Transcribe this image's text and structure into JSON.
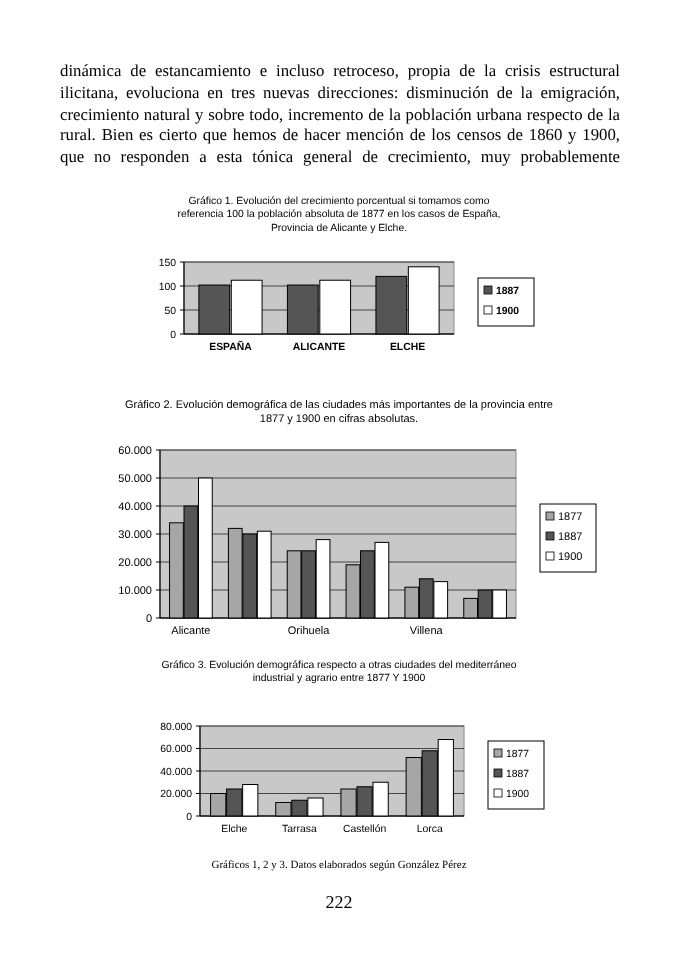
{
  "chart_data": [
    {
      "type": "bar",
      "title": "Gráfico 1. Evolución del crecimiento porcentual si tomamos como referencia 100 la población absoluta de 1877 en los casos de España, Provincia de Alicante y Elche.",
      "categories": [
        "ESPAÑA",
        "ALICANTE",
        "ELCHE"
      ],
      "series": [
        {
          "name": "1887",
          "color": "#555555",
          "values": [
            102,
            102,
            120
          ]
        },
        {
          "name": "1900",
          "color": "#ffffff",
          "values": [
            112,
            112,
            140
          ]
        }
      ],
      "ylim": [
        0,
        150
      ],
      "yticks": [
        0,
        50,
        100,
        150
      ],
      "grid": "y",
      "legend": "right",
      "annotations": [
        "dinámica de estancamiento e incluso retroceso, propia de la crisis estructural ilicitana, evoluciona en tres nuevas direcciones: disminución de la emigración, crecimiento natural y sobre todo, incremento de la población urbana respecto de la rural. Bien es cierto que hemos de hacer mención de los censos de 1860 y 1900, que no responden a esta tónica general de crecimiento, muy probablemente"
      ]
    },
    {
      "type": "bar",
      "title": "Gráfico 2. Evolución demográfica de las ciudades más importantes de la provincia entre 1877 y 1900 en cifras absolutas.",
      "categories": [
        "Alicante",
        null,
        "Orihuela",
        null,
        "Villena",
        null
      ],
      "series": [
        {
          "name": "1877",
          "color": "#a6a6a6",
          "values": [
            34000,
            32000,
            24000,
            19000,
            11000,
            7000
          ]
        },
        {
          "name": "1887",
          "color": "#555555",
          "values": [
            40000,
            30000,
            24000,
            24000,
            14000,
            10000
          ]
        },
        {
          "name": "1900",
          "color": "#ffffff",
          "values": [
            50000,
            31000,
            28000,
            27000,
            13000,
            10000
          ]
        }
      ],
      "ylim": [
        0,
        60000
      ],
      "yticks": [
        0,
        {
          "value": 10000,
          "label": "10.000"
        },
        {
          "value": 20000,
          "label": "20.000"
        },
        {
          "value": 30000,
          "label": "30.000"
        },
        {
          "value": 40000,
          "label": "40.000"
        },
        {
          "value": 50000,
          "label": "50.000"
        },
        {
          "value": 60000,
          "label": "60.000"
        }
      ],
      "grid": "y",
      "legend": "right"
    },
    {
      "type": "bar",
      "title": "Gráfico 3. Evolución demográfica respecto a otras ciudades del mediterráneo industrial y agrario entre 1877 Y 1900",
      "categories": [
        "Elche",
        "Tarrasa",
        "Castellón",
        "Lorca"
      ],
      "series": [
        {
          "name": "1877",
          "color": "#a6a6a6",
          "values": [
            20000,
            12000,
            24000,
            52000
          ]
        },
        {
          "name": "1887",
          "color": "#555555",
          "values": [
            24000,
            14000,
            26000,
            58000
          ]
        },
        {
          "name": "1900",
          "color": "#ffffff",
          "values": [
            28000,
            16000,
            30000,
            68000
          ]
        }
      ],
      "ylim": [
        0,
        80000
      ],
      "yticks": [
        0,
        {
          "value": 20000,
          "label": "20.000"
        },
        {
          "value": 40000,
          "label": "40.000"
        },
        {
          "value": 60000,
          "label": "60.000"
        },
        {
          "value": 80000,
          "label": "80.000"
        }
      ],
      "grid": "y",
      "legend": "right",
      "annotations": [
        "Gráficos 1, 2 y 3. Datos elaborados según González Pérez",
        "222"
      ]
    }
  ]
}
